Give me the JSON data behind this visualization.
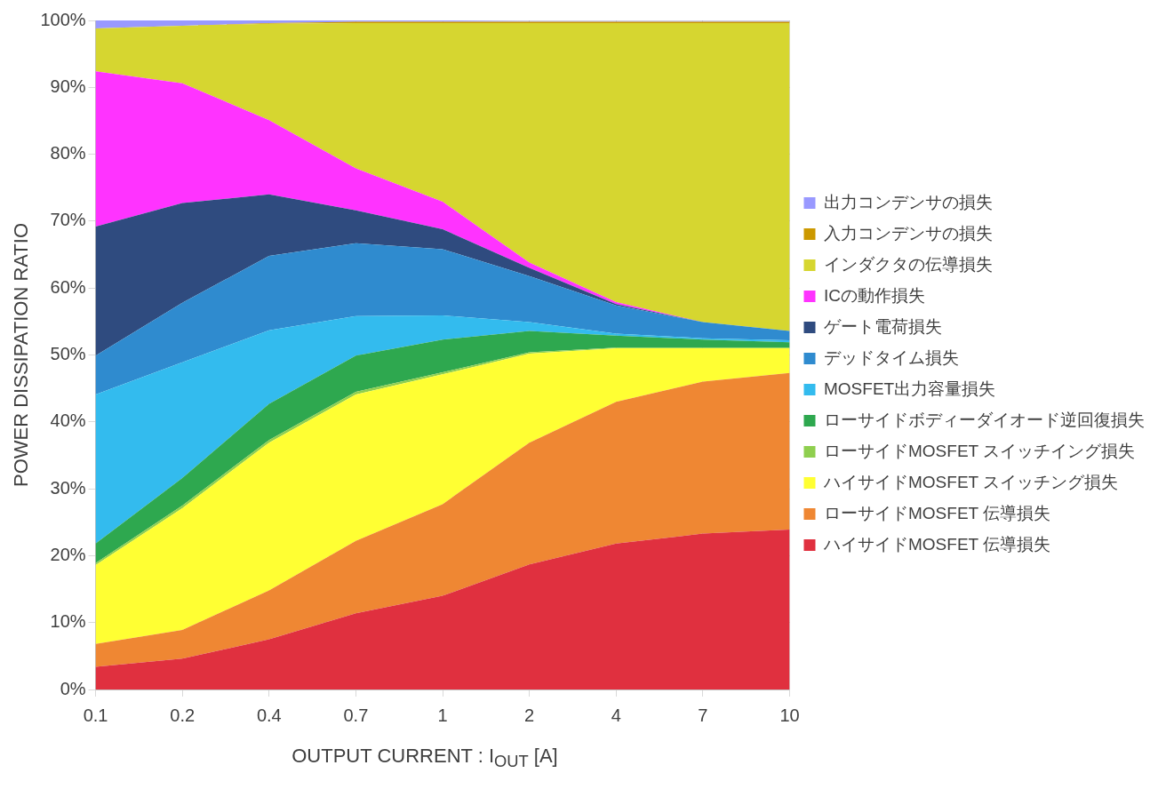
{
  "chart_data": {
    "type": "area",
    "stacked": true,
    "xlabel": "OUTPUT CURRENT : I$_{OUT}$ [A]",
    "ylabel": "POWER DISSIPATION RATIO",
    "categories": [
      "0.1",
      "0.2",
      "0.4",
      "0.7",
      "1",
      "2",
      "4",
      "7",
      "10"
    ],
    "ylim": [
      0,
      100
    ],
    "yticks": [
      {
        "value": 0,
        "label": "0%"
      },
      {
        "value": 10,
        "label": "10%"
      },
      {
        "value": 20,
        "label": "20%"
      },
      {
        "value": 30,
        "label": "30%"
      },
      {
        "value": 40,
        "label": "40%"
      },
      {
        "value": 50,
        "label": "50%"
      },
      {
        "value": 60,
        "label": "60%"
      },
      {
        "value": 70,
        "label": "70%"
      },
      {
        "value": 80,
        "label": "80%"
      },
      {
        "value": 90,
        "label": "90%"
      },
      {
        "value": 100,
        "label": "100%"
      }
    ],
    "grid": true,
    "legend": "right",
    "series": [
      {
        "name": "ハイサイドMOSFET 伝導損失",
        "color": "#e0303f",
        "values": [
          3.4,
          4.6,
          7.5,
          11.4,
          14.0,
          18.7,
          21.8,
          23.3,
          23.9
        ]
      },
      {
        "name": "ローサイドMOSFET 伝導損失",
        "color": "#ef8733",
        "values": [
          3.4,
          4.3,
          7.3,
          10.8,
          13.7,
          18.2,
          21.2,
          22.7,
          23.4
        ]
      },
      {
        "name": "ハイサイドMOSFET スイッチング損失",
        "color": "#ffff33",
        "values": [
          11.8,
          18.2,
          22.1,
          21.9,
          19.4,
          13.3,
          8.0,
          5.0,
          3.7
        ]
      },
      {
        "name": "ローサイドMOSFET スイッチイング損失",
        "color": "#8fcf4f",
        "values": [
          0.3,
          0.4,
          0.4,
          0.4,
          0.3,
          0.2,
          0.1,
          0.1,
          0.1
        ]
      },
      {
        "name": "ローサイドボディーダイオード逆回復損失",
        "color": "#2ea84f",
        "values": [
          2.9,
          4.1,
          5.4,
          5.4,
          4.9,
          3.2,
          1.8,
          1.2,
          0.8
        ]
      },
      {
        "name": "MOSFET出力容量損失",
        "color": "#33bbee",
        "values": [
          22.3,
          17.3,
          11.0,
          5.9,
          3.6,
          1.3,
          0.3,
          0.2,
          0.3
        ]
      },
      {
        "name": "デッドタイム損失",
        "color": "#2f8bcf",
        "values": [
          5.8,
          8.9,
          11.1,
          10.9,
          9.9,
          6.9,
          4.2,
          2.4,
          1.4
        ]
      },
      {
        "name": "ゲート電荷損失",
        "color": "#2f4b7f",
        "values": [
          19.3,
          14.9,
          9.2,
          4.9,
          3.0,
          1.2,
          0.2,
          0.0,
          0.0
        ]
      },
      {
        "name": "ICの動作損失",
        "color": "#ff33ff",
        "values": [
          23.2,
          17.9,
          11.1,
          6.3,
          4.1,
          0.8,
          0.3,
          0.0,
          0.0
        ]
      },
      {
        "name": "インダクタの伝導損失",
        "color": "#d6d630",
        "values": [
          6.4,
          8.6,
          14.4,
          21.7,
          26.7,
          35.8,
          41.7,
          44.7,
          46.0
        ]
      },
      {
        "name": "入力コンデンサの損失",
        "color": "#cc9900",
        "values": [
          0,
          0,
          0.1,
          0.2,
          0.2,
          0.2,
          0.2,
          0.2,
          0.2
        ]
      },
      {
        "name": "出力コンデンサの損失",
        "color": "#9999ff",
        "values": [
          1.2,
          0.8,
          0.4,
          0.2,
          0.2,
          0.1,
          0.1,
          0.1,
          0.1
        ]
      }
    ]
  }
}
